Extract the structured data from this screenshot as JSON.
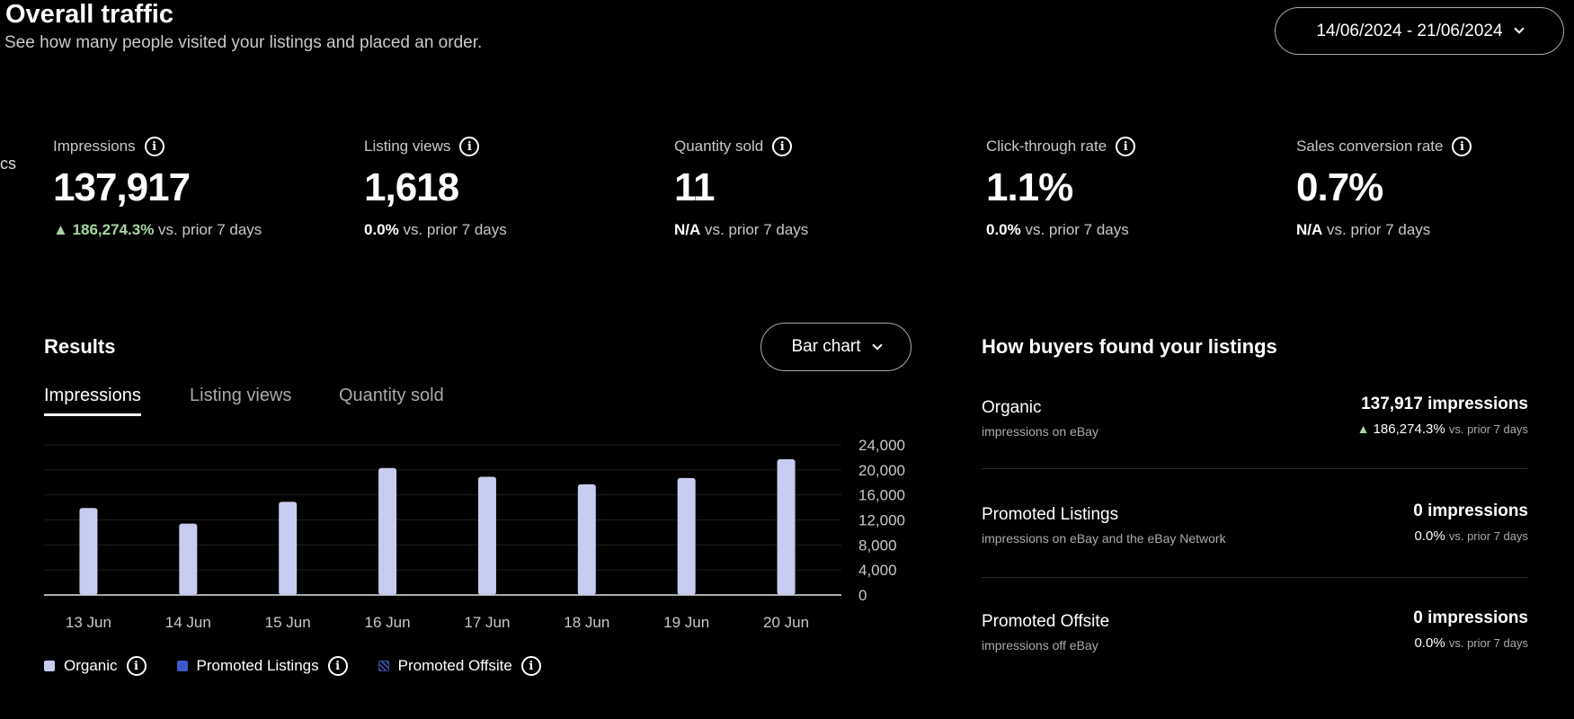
{
  "header": {
    "title": "Overall traffic",
    "subtitle": "See how many people visited your listings and placed an order.",
    "date_range": "14/06/2024 - 21/06/2024",
    "cut_text": "cs"
  },
  "metrics": [
    {
      "label": "Impressions",
      "value": "137,917",
      "change": "186,274.3%",
      "trend": "up",
      "suffix": "vs. prior 7 days"
    },
    {
      "label": "Listing views",
      "value": "1,618",
      "change": "0.0%",
      "suffix": "vs. prior 7 days"
    },
    {
      "label": "Quantity sold",
      "value": "11",
      "change": "N/A",
      "suffix": "vs. prior 7 days"
    },
    {
      "label": "Click-through rate",
      "value": "1.1%",
      "change": "0.0%",
      "suffix": "vs. prior 7 days"
    },
    {
      "label": "Sales conversion rate",
      "value": "0.7%",
      "change": "N/A",
      "suffix": "vs. prior 7 days"
    }
  ],
  "results": {
    "title": "Results",
    "chart_type_label": "Bar chart",
    "tabs": [
      "Impressions",
      "Listing views",
      "Quantity sold"
    ],
    "active_tab": 0
  },
  "chart_data": {
    "type": "bar",
    "categories": [
      "13 Jun",
      "14 Jun",
      "15 Jun",
      "16 Jun",
      "17 Jun",
      "18 Jun",
      "19 Jun",
      "20 Jun"
    ],
    "series": [
      {
        "name": "Organic",
        "values": [
          13900,
          11400,
          14900,
          20300,
          18900,
          17700,
          18700,
          21700
        ],
        "color": "#c7cdf0"
      },
      {
        "name": "Promoted Listings",
        "values": [
          0,
          0,
          0,
          0,
          0,
          0,
          0,
          0
        ],
        "color": "#3b5bcc"
      },
      {
        "name": "Promoted Offsite",
        "values": [
          0,
          0,
          0,
          0,
          0,
          0,
          0,
          0
        ],
        "color": "#3b4a9a"
      }
    ],
    "yticks": [
      "0",
      "4,000",
      "8,000",
      "12,000",
      "16,000",
      "20,000",
      "24,000"
    ],
    "ylim": [
      0,
      24000
    ],
    "grid": true,
    "legend": "bottom",
    "yaxis_side": "right"
  },
  "sources": {
    "title": "How buyers found your listings",
    "rows": [
      {
        "name": "Organic",
        "desc": "impressions on eBay",
        "value": "137,917 impressions",
        "change": "186,274.3%",
        "trend": "up",
        "suffix": "vs. prior 7 days"
      },
      {
        "name": "Promoted Listings",
        "desc": "impressions on eBay and the eBay Network",
        "value": "0 impressions",
        "change": "0.0%",
        "suffix": "vs. prior 7 days"
      },
      {
        "name": "Promoted Offsite",
        "desc": "impressions off eBay",
        "value": "0 impressions",
        "change": "0.0%",
        "suffix": "vs. prior 7 days"
      }
    ]
  },
  "colors": {
    "up": "#a7d6a0",
    "bar": "#c7cdf0"
  }
}
